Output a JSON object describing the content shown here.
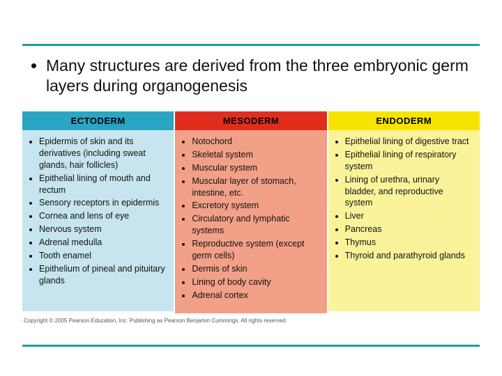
{
  "rule_color": "#1a9e9e",
  "main_bullet": "Many structures are derived from the three embryonic germ layers during organogenesis",
  "copyright": "Copyright © 2005 Pearson Education, Inc. Publishing as Pearson Benjamin Cummings. All rights reserved.",
  "columns": [
    {
      "header": "ECTODERM",
      "header_bg": "#2aa6c4",
      "body_bg": "#c6e5ee",
      "items": [
        "Epidermis of skin and its derivatives (including sweat glands, hair follicles)",
        "Epithelial lining of mouth and rectum",
        "Sensory receptors in epidermis",
        "Cornea and lens of eye",
        "Nervous system",
        "Adrenal medulla",
        "Tooth enamel",
        "Epithelium of pineal and pituitary glands"
      ]
    },
    {
      "header": "MESODERM",
      "header_bg": "#e12d1e",
      "body_bg": "#f2a088",
      "items": [
        "Notochord",
        "Skeletal system",
        "Muscular system",
        "Muscular layer of stomach, intestine, etc.",
        "Excretory system",
        "Circulatory and lymphatic systems",
        "Reproductive system (except germ cells)",
        "Dermis of skin",
        "Lining of body cavity",
        "Adrenal cortex"
      ]
    },
    {
      "header": "ENDODERM",
      "header_bg": "#f6e400",
      "body_bg": "#faf39a",
      "items": [
        "Epithelial lining of digestive tract",
        "Epithelial lining of respiratory system",
        "Lining of urethra, urinary bladder, and reproductive system",
        "Liver",
        "Pancreas",
        "Thymus",
        "Thyroid and parathyroid glands"
      ]
    }
  ]
}
